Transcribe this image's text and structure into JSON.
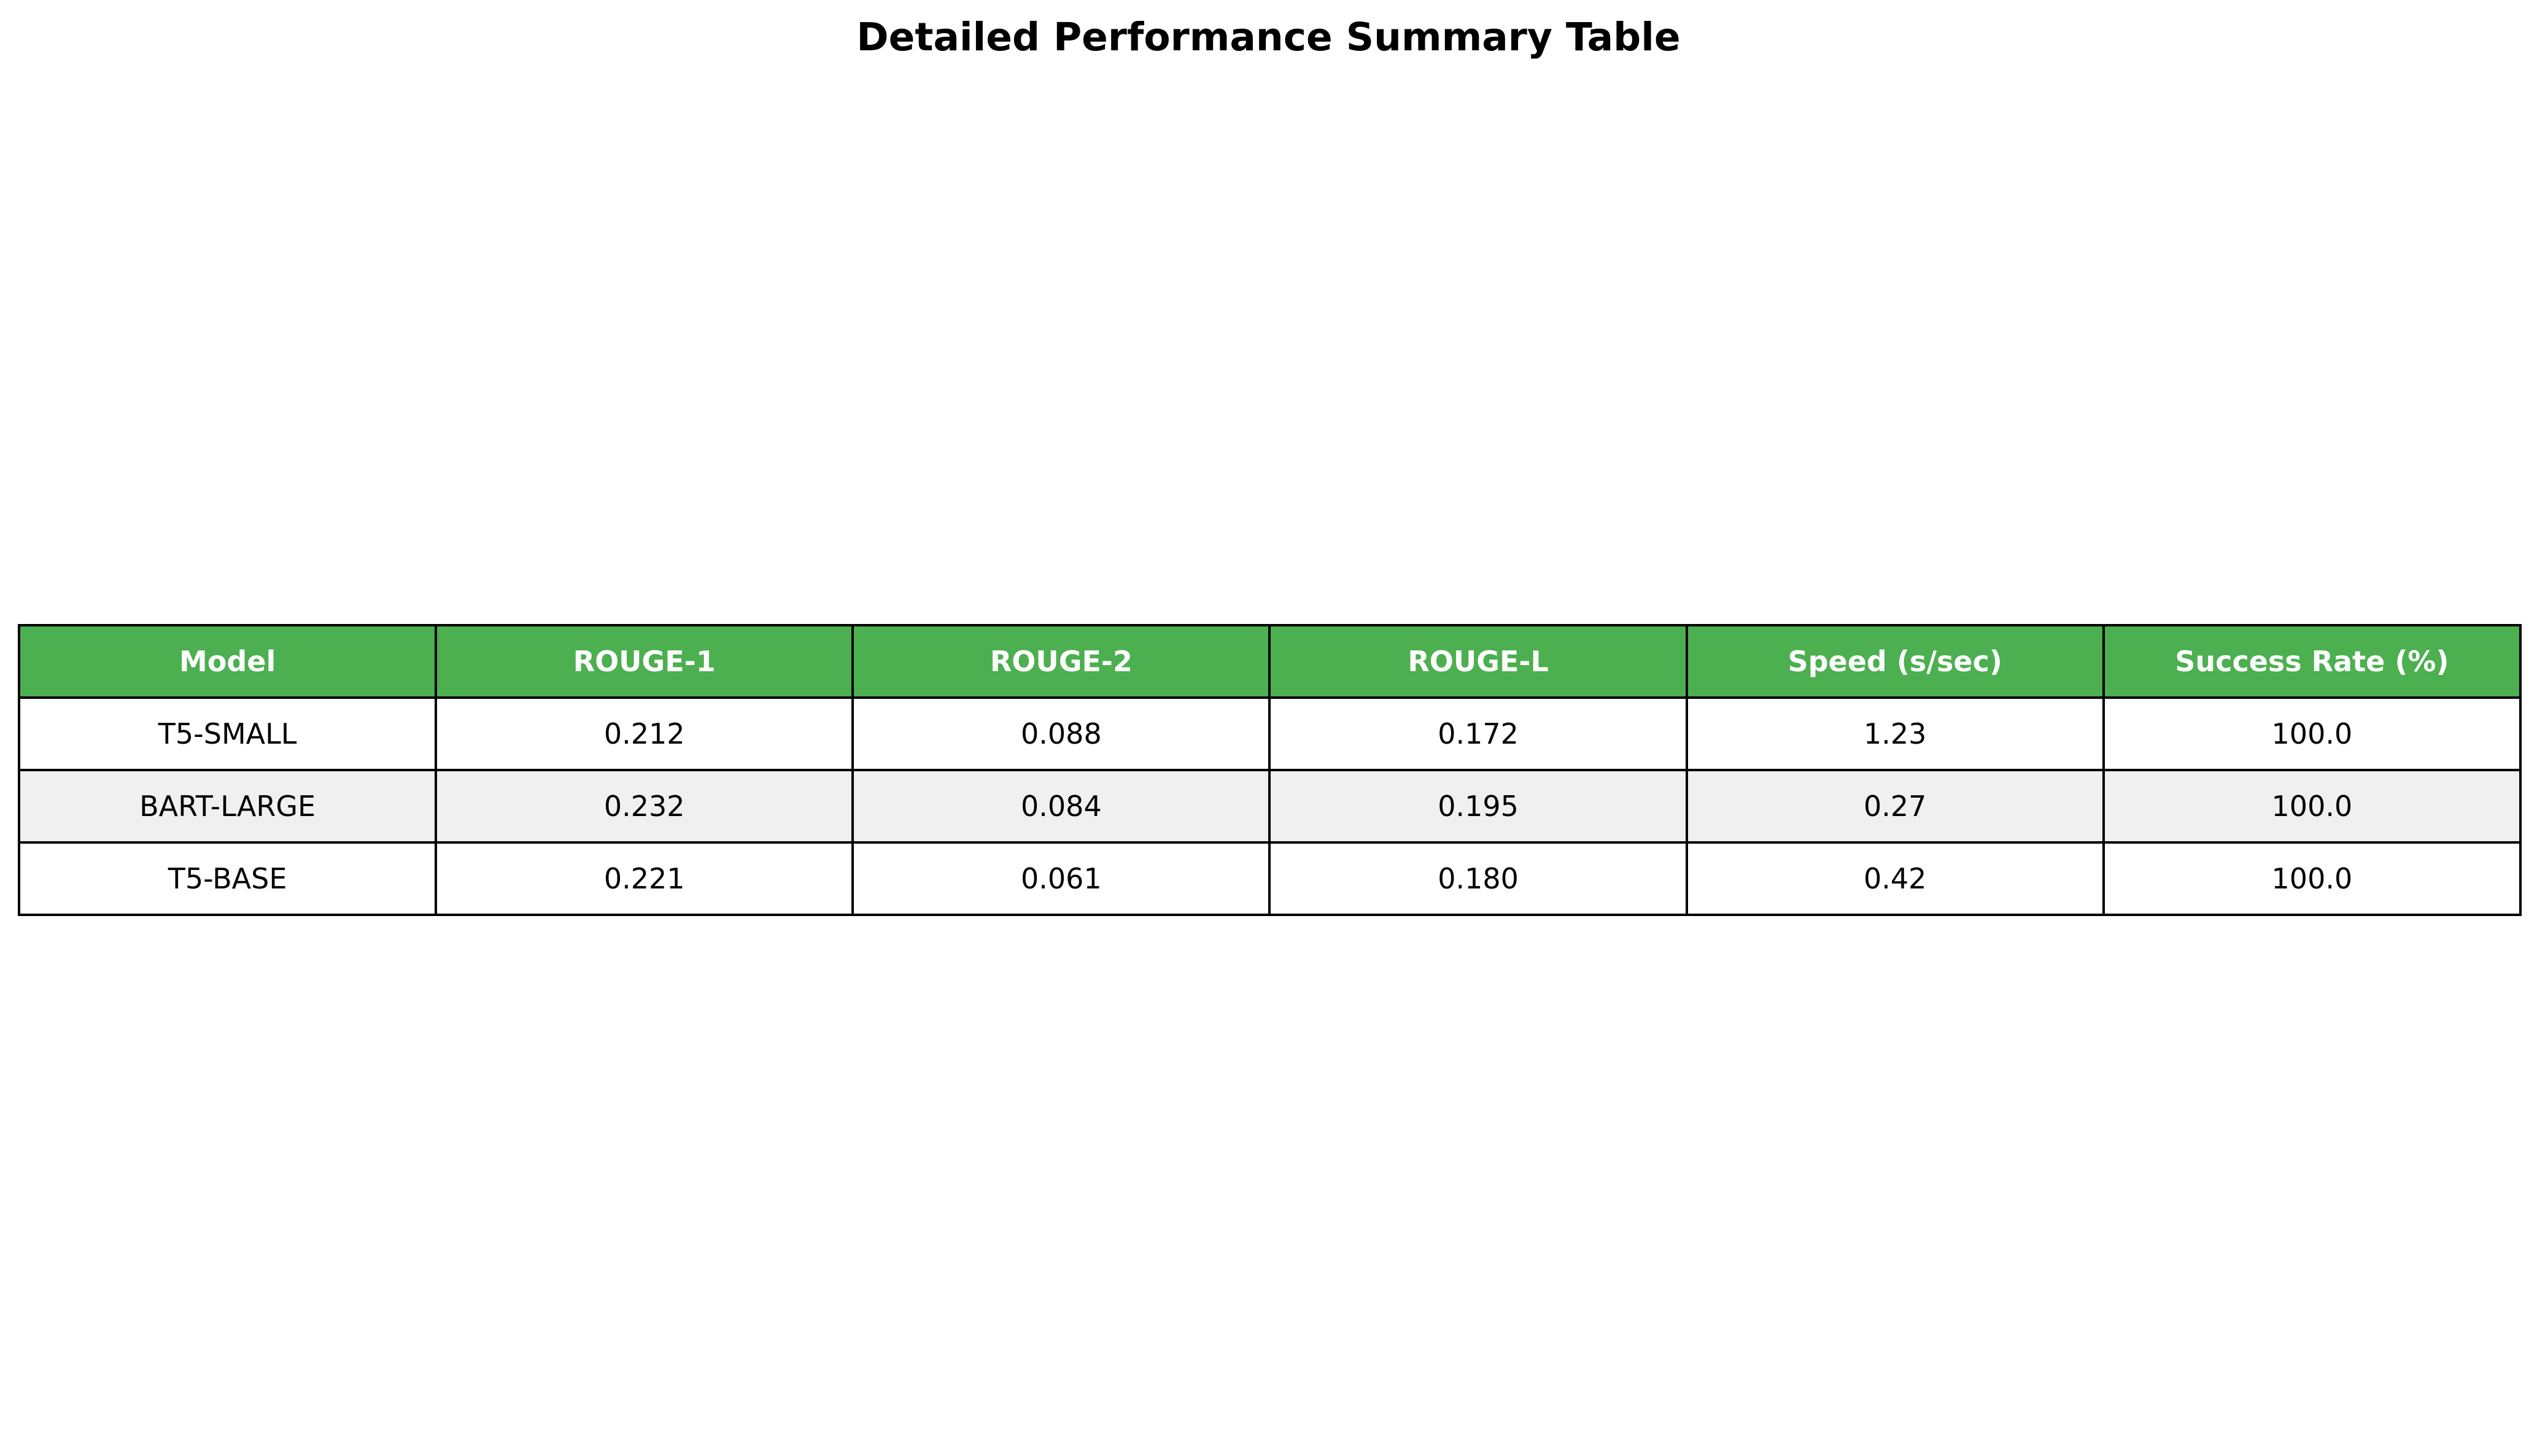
{
  "chart_data": {
    "type": "table",
    "title": "Detailed Performance Summary Table",
    "columns": [
      "Model",
      "ROUGE-1",
      "ROUGE-2",
      "ROUGE-L",
      "Speed (s/sec)",
      "Success Rate (%)"
    ],
    "rows": [
      [
        "T5-SMALL",
        "0.212",
        "0.088",
        "0.172",
        "1.23",
        "100.0"
      ],
      [
        "BART-LARGE",
        "0.232",
        "0.084",
        "0.195",
        "0.27",
        "100.0"
      ],
      [
        "T5-BASE",
        "0.221",
        "0.061",
        "0.180",
        "0.42",
        "100.0"
      ]
    ]
  },
  "colors": {
    "header_bg": "#4caf50",
    "header_text": "#ffffff",
    "row_odd_bg": "#ffffff",
    "row_even_bg": "#f0f0f0",
    "border": "#000000"
  }
}
